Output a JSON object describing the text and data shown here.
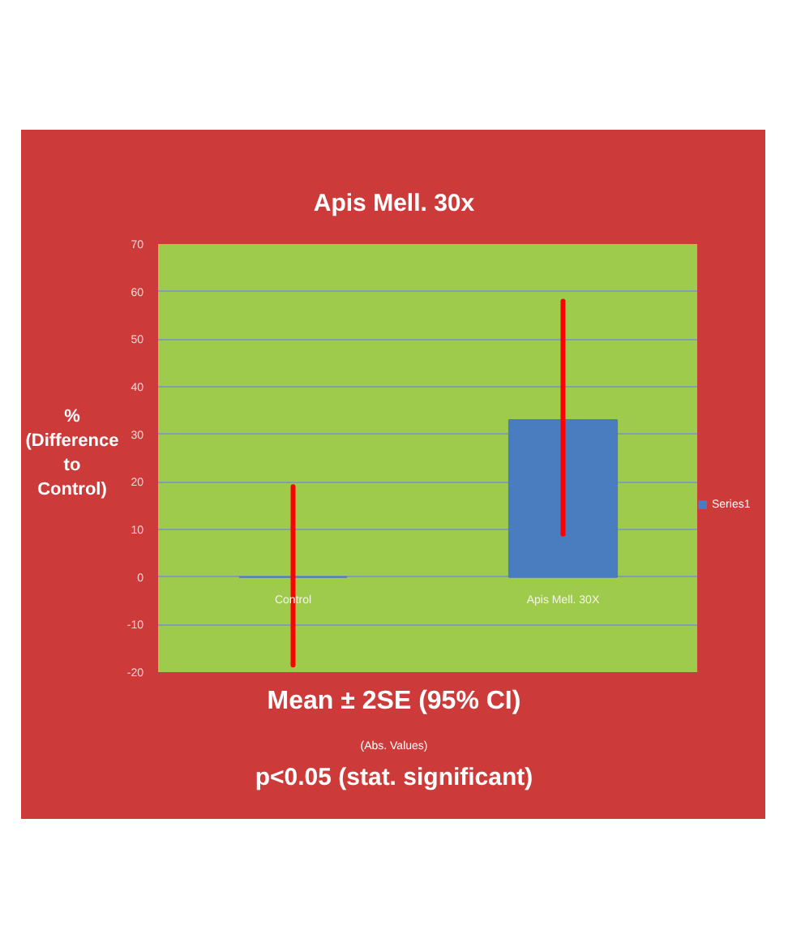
{
  "chart_data": {
    "type": "bar",
    "title": "Apis Mell. 30x",
    "xlabel": "Mean ± 2SE (95% CI)",
    "ylabel": "% (Difference to Control)",
    "annotations": [
      "(Abs. Values)",
      "p<0.05 (stat. significant)"
    ],
    "categories": [
      "Control",
      "Apis Mell. 30X"
    ],
    "series": [
      {
        "name": "Series1",
        "color": "#4a7cc0",
        "values": [
          0,
          33
        ],
        "errors": [
          [
            -18.5,
            19
          ],
          [
            9,
            58
          ]
        ]
      }
    ],
    "ylim": [
      -20,
      70
    ],
    "yticks": [
      -20,
      -10,
      0,
      10,
      20,
      30,
      40,
      50,
      60,
      70
    ],
    "grid": "y",
    "legend": "right"
  }
}
